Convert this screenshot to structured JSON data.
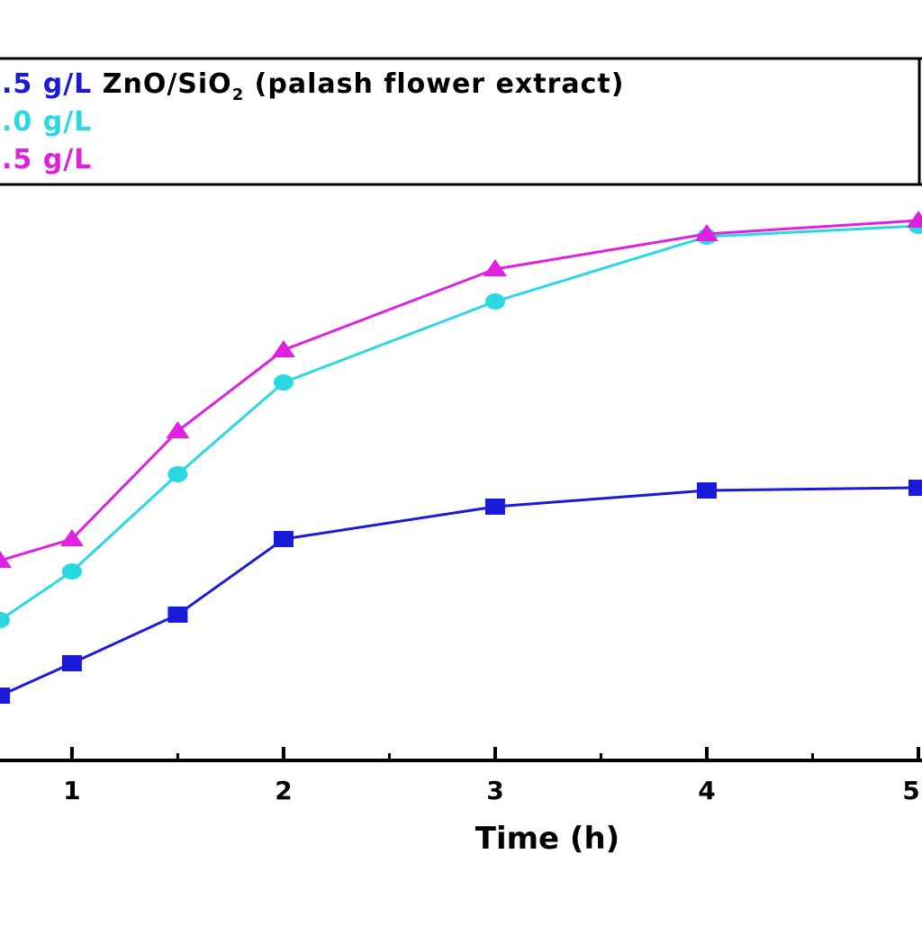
{
  "chart_data": {
    "type": "line",
    "xlabel": "Time (h)",
    "ylabel": "",
    "x_ticks": [
      "1",
      "2",
      "3",
      "4",
      "5"
    ],
    "xlim": [
      0.66,
      5.0
    ],
    "ylim": [
      0,
      1
    ],
    "legend": {
      "placement": "top",
      "entries": [
        {
          "label": ".5 g/L ZnO/SiO",
          "subscript": "2",
          "suffix": " (palash flower extract)",
          "color": "#1a1adb"
        },
        {
          "label": ".0 g/L",
          "color": "#29d8e0"
        },
        {
          "label": ".5 g/L",
          "color": "#e020e0"
        }
      ]
    },
    "series": [
      {
        "color": "#1a1adb",
        "marker": "square",
        "x": [
          0.66,
          1.0,
          1.5,
          2.0,
          3.0,
          4.0,
          5.0
        ],
        "y": [
          0.12,
          0.18,
          0.27,
          0.41,
          0.47,
          0.5,
          0.505
        ]
      },
      {
        "color": "#29d8e0",
        "marker": "circle",
        "x": [
          0.66,
          1.0,
          1.5,
          2.0,
          3.0,
          4.0,
          5.0
        ],
        "y": [
          0.26,
          0.35,
          0.53,
          0.7,
          0.85,
          0.97,
          0.99
        ]
      },
      {
        "color": "#e020e0",
        "marker": "triangle",
        "x": [
          0.66,
          1.0,
          1.5,
          2.0,
          3.0,
          4.0,
          5.0
        ],
        "y": [
          0.37,
          0.41,
          0.61,
          0.76,
          0.91,
          0.975,
          1.0
        ]
      }
    ]
  }
}
